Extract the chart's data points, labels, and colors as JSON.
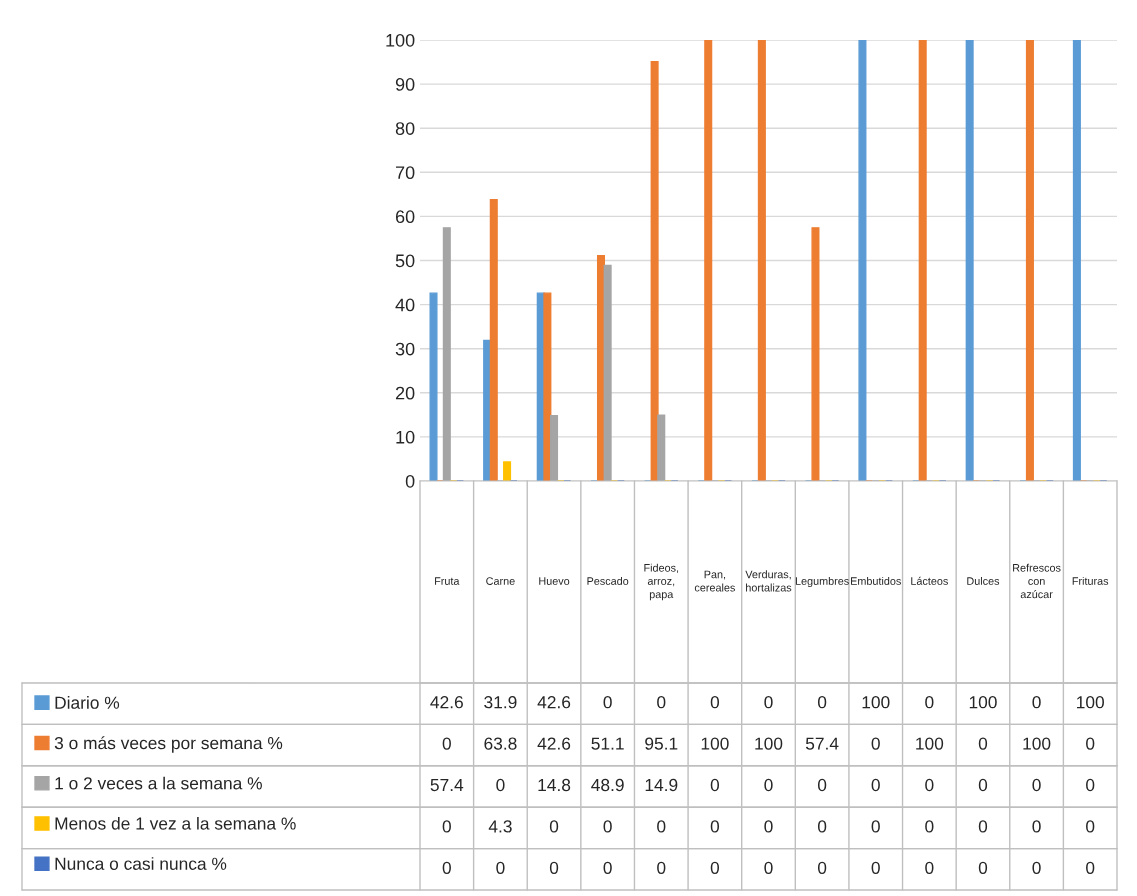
{
  "chart_data": {
    "type": "bar",
    "categories": [
      "Fruta",
      "Carne",
      "Huevo",
      "Pescado",
      "Fideos, arroz, papa",
      "Pan, cereales",
      "Verduras, hortalizas",
      "Legumbres",
      "Embutidos",
      "Lácteos",
      "Dulces",
      "Refrescos con azúcar",
      "Frituras"
    ],
    "series": [
      {
        "name": "Diario %",
        "color": "#5b9bd5",
        "values": [
          42.6,
          31.9,
          42.6,
          0,
          0,
          0,
          0,
          0,
          100,
          0,
          100,
          0,
          100
        ]
      },
      {
        "name": "3 o más veces por semana %",
        "color": "#ed7d31",
        "values": [
          0,
          63.8,
          42.6,
          51.1,
          95.1,
          100,
          100,
          57.4,
          0,
          100,
          0,
          100,
          0
        ]
      },
      {
        "name": "1 o 2 veces a la semana %",
        "color": "#a5a5a5",
        "values": [
          57.4,
          0,
          14.8,
          48.9,
          14.9,
          0,
          0,
          0,
          0,
          0,
          0,
          0,
          0
        ]
      },
      {
        "name": "Menos de 1 vez a la semana %",
        "color": "#ffc000",
        "values": [
          0,
          4.3,
          0,
          0,
          0,
          0,
          0,
          0,
          0,
          0,
          0,
          0,
          0
        ]
      },
      {
        "name": "Nunca o casi nunca %",
        "color": "#4472c4",
        "values": [
          0,
          0,
          0,
          0,
          0,
          0,
          0,
          0,
          0,
          0,
          0,
          0,
          0
        ]
      }
    ],
    "ylim": [
      0,
      100
    ],
    "yticks": [
      0,
      10,
      20,
      30,
      40,
      50,
      60,
      70,
      80,
      90,
      100
    ],
    "grid": "y",
    "legend": "bottom",
    "data_labels": true
  }
}
